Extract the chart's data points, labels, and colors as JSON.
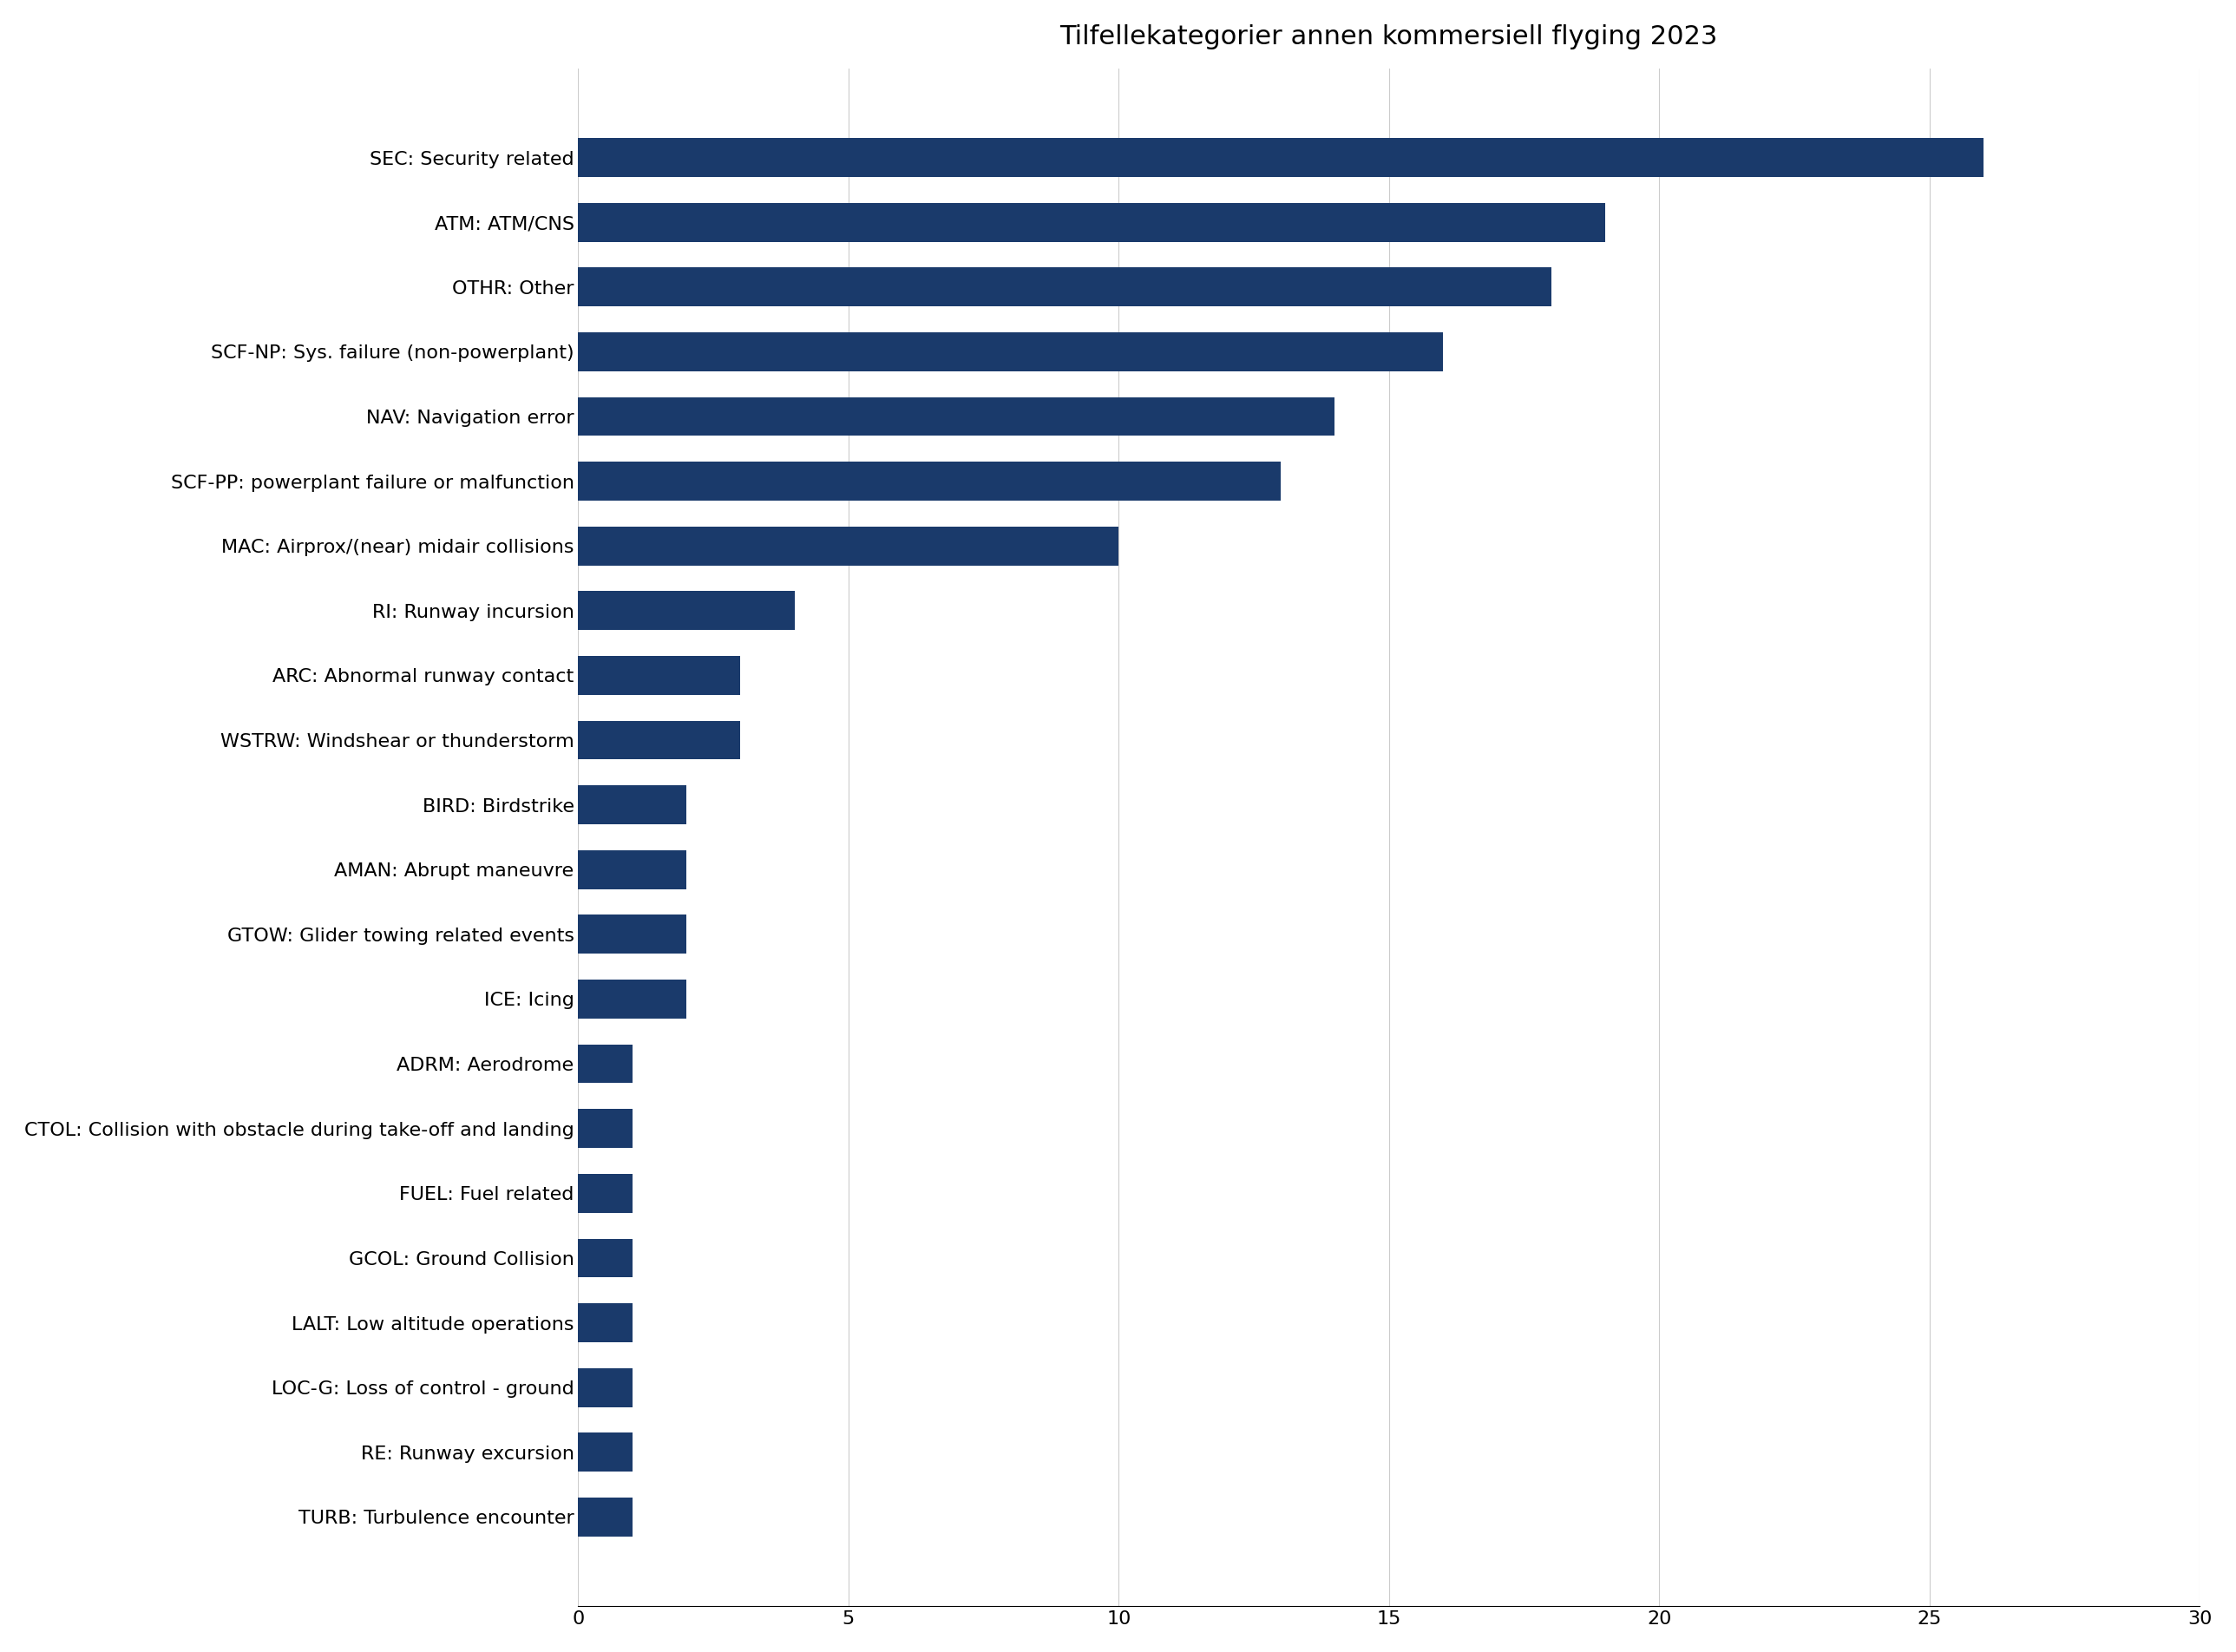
{
  "title": "Tilfellekategorier annen kommersiell flyging 2023",
  "categories": [
    "SEC: Security related",
    "ATM: ATM/CNS",
    "OTHR: Other",
    "SCF-NP: Sys. failure (non-powerplant)",
    "NAV: Navigation error",
    "SCF-PP: powerplant failure or malfunction",
    "MAC: Airprox/(near) midair collisions",
    "RI: Runway incursion",
    "ARC: Abnormal runway contact",
    "WSTRW: Windshear or thunderstorm",
    "BIRD: Birdstrike",
    "AMAN: Abrupt maneuvre",
    "GTOW: Glider towing related events",
    "ICE: Icing",
    "ADRM: Aerodrome",
    "CTOL: Collision with obstacle during take-off and landing",
    "FUEL: Fuel related",
    "GCOL: Ground Collision",
    "LALT: Low altitude operations",
    "LOC-G: Loss of control - ground",
    "RE: Runway excursion",
    "TURB: Turbulence encounter"
  ],
  "values": [
    26,
    19,
    18,
    16,
    14,
    13,
    10,
    4,
    3,
    3,
    2,
    2,
    2,
    2,
    1,
    1,
    1,
    1,
    1,
    1,
    1,
    1
  ],
  "bar_color": "#1a3a6b",
  "xlim": [
    0,
    30
  ],
  "xticks": [
    0,
    5,
    10,
    15,
    20,
    25,
    30
  ],
  "background_color": "#ffffff",
  "title_fontsize": 22,
  "label_fontsize": 16,
  "tick_fontsize": 16,
  "bar_height": 0.6
}
